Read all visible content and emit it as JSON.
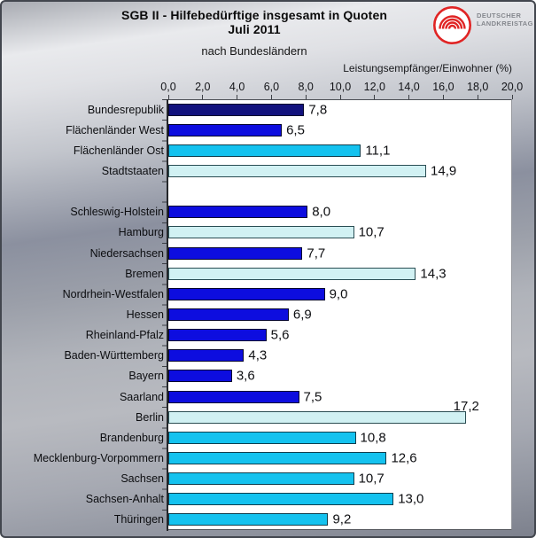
{
  "header": {
    "title_line1": "SGB II - Hilfebedürftige insgesamt in Quoten",
    "title_line2": "Juli 2011",
    "subtitle": "nach Bundesländern"
  },
  "logo": {
    "line1": "DEUTSCHER",
    "line2": "LANDKREISTAG",
    "ring_color": "#e02424"
  },
  "chart_data": {
    "type": "bar",
    "orientation": "horizontal",
    "title": "SGB II - Hilfebedürftige insgesamt in Quoten Juli 2011",
    "subtitle": "nach Bundesländern",
    "axis_label": "Leistungsempfänger/Einwohner (%)",
    "xlim": [
      0,
      20
    ],
    "x_ticks": [
      "0,0",
      "2,0",
      "4,0",
      "6,0",
      "8,0",
      "10,0",
      "12,0",
      "14,0",
      "16,0",
      "18,0",
      "20,0"
    ],
    "grid": false,
    "legend": "none",
    "colors": {
      "navy": {
        "fill": "#12127d",
        "border": "#05052c"
      },
      "blue": {
        "fill": "#0d0ddf",
        "border": "#03032e"
      },
      "cyan": {
        "fill": "#14c2ef",
        "border": "#0e3d4d"
      },
      "pale": {
        "fill": "#d1f1f3",
        "border": "#2a4d53"
      }
    },
    "groups": [
      {
        "name": "aggregates",
        "rows": [
          {
            "label": "Bundesrepublik",
            "value": 7.8,
            "display": "7,8",
            "color": "navy"
          },
          {
            "label": "Flächenländer West",
            "value": 6.5,
            "display": "6,5",
            "color": "blue"
          },
          {
            "label": "Flächenländer Ost",
            "value": 11.1,
            "display": "11,1",
            "color": "cyan"
          },
          {
            "label": "Stadtstaaten",
            "value": 14.9,
            "display": "14,9",
            "color": "pale"
          }
        ]
      },
      {
        "name": "bundeslaender",
        "rows": [
          {
            "label": "Schleswig-Holstein",
            "value": 8.0,
            "display": "8,0",
            "color": "blue"
          },
          {
            "label": "Hamburg",
            "value": 10.7,
            "display": "10,7",
            "color": "pale"
          },
          {
            "label": "Niedersachsen",
            "value": 7.7,
            "display": "7,7",
            "color": "blue"
          },
          {
            "label": "Bremen",
            "value": 14.3,
            "display": "14,3",
            "color": "pale"
          },
          {
            "label": "Nordrhein-Westfalen",
            "value": 9.0,
            "display": "9,0",
            "color": "blue"
          },
          {
            "label": "Hessen",
            "value": 6.9,
            "display": "6,9",
            "color": "blue"
          },
          {
            "label": "Rheinland-Pfalz",
            "value": 5.6,
            "display": "5,6",
            "color": "blue"
          },
          {
            "label": "Baden-Württemberg",
            "value": 4.3,
            "display": "4,3",
            "color": "blue"
          },
          {
            "label": "Bayern",
            "value": 3.6,
            "display": "3,6",
            "color": "blue"
          },
          {
            "label": "Saarland",
            "value": 7.5,
            "display": "7,5",
            "color": "blue"
          },
          {
            "label": "Berlin",
            "value": 17.2,
            "display": "17,2",
            "color": "pale",
            "value_label_position": "above"
          },
          {
            "label": "Brandenburg",
            "value": 10.8,
            "display": "10,8",
            "color": "cyan"
          },
          {
            "label": "Mecklenburg-Vorpommern",
            "value": 12.6,
            "display": "12,6",
            "color": "cyan"
          },
          {
            "label": "Sachsen",
            "value": 10.7,
            "display": "10,7",
            "color": "cyan"
          },
          {
            "label": "Sachsen-Anhalt",
            "value": 13.0,
            "display": "13,0",
            "color": "cyan"
          },
          {
            "label": "Thüringen",
            "value": 9.2,
            "display": "9,2",
            "color": "cyan"
          }
        ]
      }
    ]
  }
}
